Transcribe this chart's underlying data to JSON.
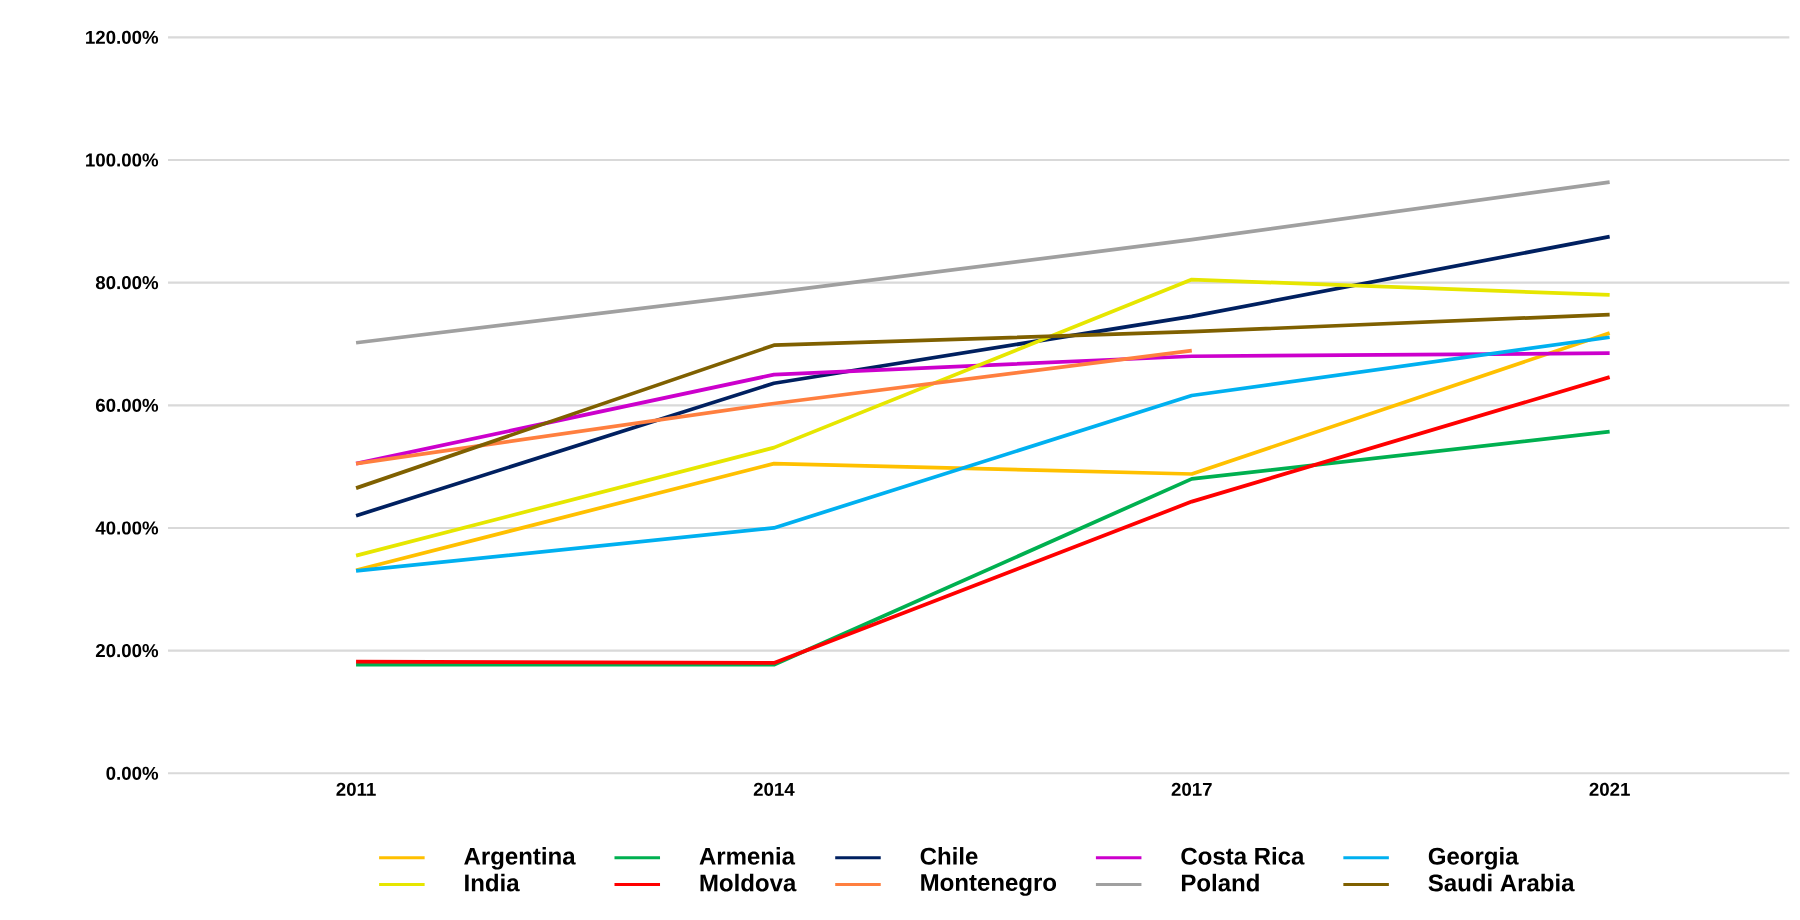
{
  "chart_data": {
    "type": "line",
    "categories": [
      "2011",
      "2014",
      "2017",
      "2021"
    ],
    "series": [
      {
        "name": "Argentina",
        "color": "#ffc000",
        "values": [
          33.1,
          50.5,
          48.8,
          71.8
        ]
      },
      {
        "name": "Armenia",
        "color": "#00b050",
        "values": [
          17.7,
          17.7,
          48.0,
          55.7
        ]
      },
      {
        "name": "Chile",
        "color": "#002060",
        "values": [
          42.0,
          63.6,
          74.5,
          87.5
        ]
      },
      {
        "name": "Costa Rica",
        "color": "#cc00cc",
        "values": [
          50.5,
          65.0,
          68.0,
          68.5
        ]
      },
      {
        "name": "Georgia",
        "color": "#00b0f0",
        "values": [
          33.0,
          40.0,
          61.6,
          71.1
        ]
      },
      {
        "name": "India",
        "color": "#e6e600",
        "values": [
          35.5,
          53.1,
          80.5,
          78.0
        ]
      },
      {
        "name": "Moldova",
        "color": "#ff0000",
        "values": [
          18.2,
          18.0,
          44.3,
          64.6
        ]
      },
      {
        "name": "Montenegro",
        "color": "#ff7f3f",
        "values": [
          50.5,
          60.3,
          68.9,
          null
        ]
      },
      {
        "name": "Poland",
        "color": "#a0a0a0",
        "values": [
          70.2,
          78.4,
          87.0,
          96.4
        ]
      },
      {
        "name": "Saudi Arabia",
        "color": "#7f6000",
        "values": [
          46.5,
          69.8,
          72.0,
          74.8
        ]
      }
    ],
    "ylim": [
      0,
      120
    ],
    "yticks": [
      {
        "value": 0,
        "label": "0.00%"
      },
      {
        "value": 20,
        "label": "20.00%"
      },
      {
        "value": 40,
        "label": "40.00%"
      },
      {
        "value": 60,
        "label": "60.00%"
      },
      {
        "value": 80,
        "label": "80.00%"
      },
      {
        "value": 100,
        "label": "100.00%"
      },
      {
        "value": 120,
        "label": "120.00%"
      }
    ],
    "grid": "y",
    "legend": "bottom",
    "marker": "none",
    "line_style": "solid"
  }
}
